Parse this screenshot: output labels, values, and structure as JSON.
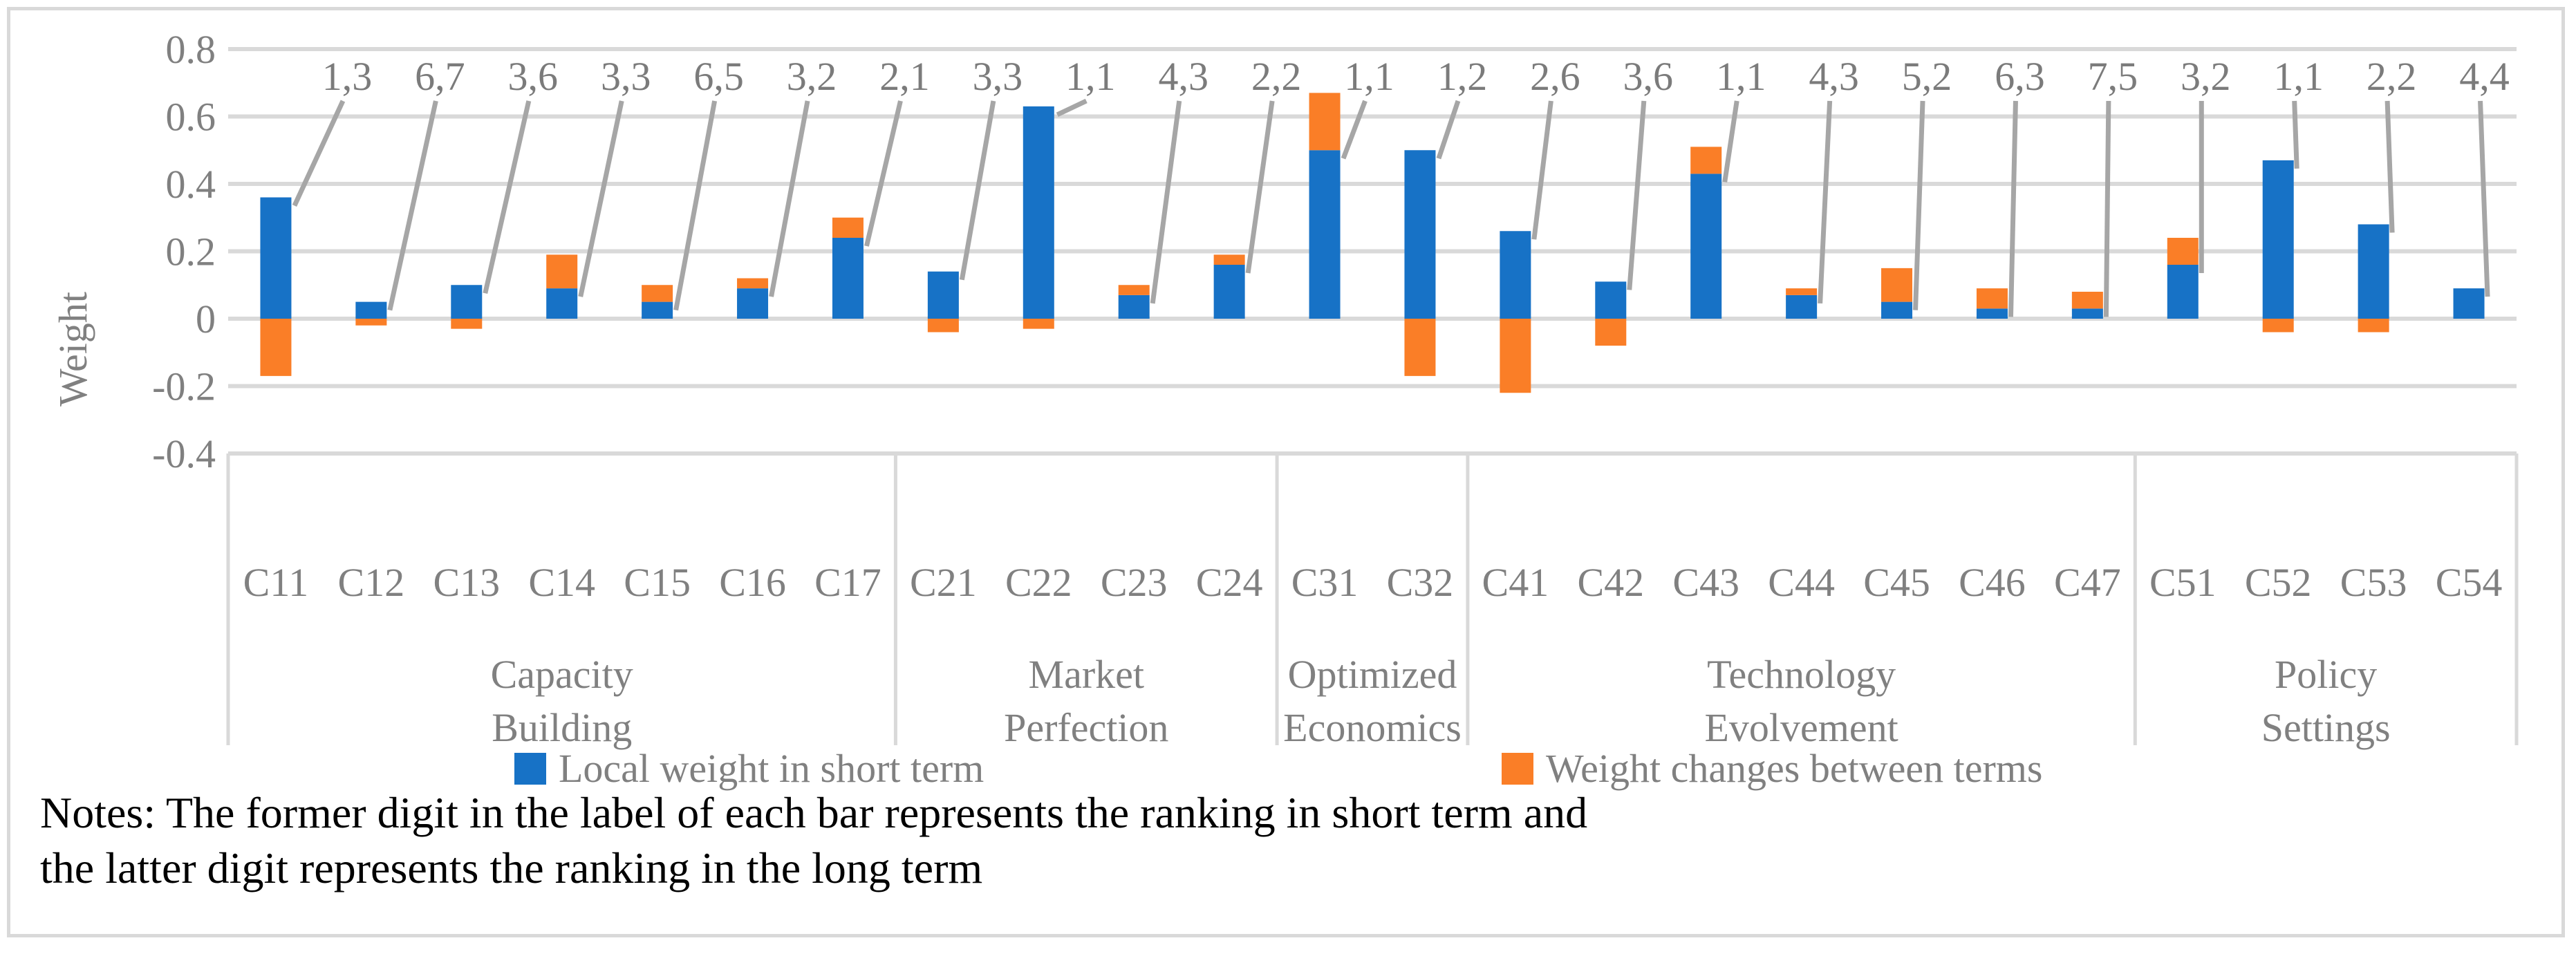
{
  "chart_data": {
    "type": "bar",
    "stacked": true,
    "title": "",
    "xlabel": "",
    "ylabel": "Weight",
    "ylim": [
      -0.4,
      0.8
    ],
    "ytick_labels": [
      "0.8",
      "0.6",
      "0.4",
      "0.2",
      "0",
      "-0.2",
      "-0.4"
    ],
    "grid": true,
    "legend_position": "bottom",
    "categories": [
      "C11",
      "C12",
      "C13",
      "C14",
      "C15",
      "C16",
      "C17",
      "C21",
      "C22",
      "C23",
      "C24",
      "C31",
      "C32",
      "C41",
      "C42",
      "C43",
      "C44",
      "C45",
      "C46",
      "C47",
      "C51",
      "C52",
      "C53",
      "C54"
    ],
    "bar_labels": [
      "1,3",
      "6,7",
      "3,6",
      "3,3",
      "6,5",
      "3,2",
      "2,1",
      "3,3",
      "1,1",
      "4,3",
      "2,2",
      "1,1",
      "1,2",
      "2,6",
      "3,6",
      "1,1",
      "4,3",
      "5,2",
      "6,3",
      "7,5",
      "3,2",
      "1,1",
      "2,2",
      "4,4"
    ],
    "series": [
      {
        "name": "Local weight in short term",
        "color": "#1772C6",
        "values": [
          0.36,
          0.05,
          0.1,
          0.09,
          0.05,
          0.09,
          0.24,
          0.14,
          0.63,
          0.07,
          0.16,
          0.5,
          0.5,
          0.26,
          0.11,
          0.43,
          0.07,
          0.05,
          0.03,
          0.03,
          0.16,
          0.47,
          0.28,
          0.09
        ]
      },
      {
        "name": "Weight changes between terms",
        "color": "#FA7E27",
        "values": [
          -0.17,
          -0.02,
          -0.03,
          0.1,
          0.05,
          0.03,
          0.06,
          -0.04,
          -0.03,
          0.03,
          0.03,
          0.17,
          -0.17,
          -0.22,
          -0.08,
          0.08,
          0.02,
          0.1,
          0.06,
          0.05,
          0.08,
          -0.04,
          -0.04,
          0
        ]
      }
    ],
    "groups": [
      {
        "line1": "Capacity",
        "line2": "Building",
        "count": 7
      },
      {
        "line1": "Market",
        "line2": "Perfection",
        "count": 4
      },
      {
        "line1": "Optimized",
        "line2": "Economics",
        "count": 2
      },
      {
        "line1": "Technology",
        "line2": "Evolvement",
        "count": 7
      },
      {
        "line1": "Policy",
        "line2": "Settings",
        "count": 4
      }
    ]
  },
  "legend": {
    "items": [
      {
        "label": "Local weight in short term",
        "color": "#1772C6"
      },
      {
        "label": "Weight changes between terms",
        "color": "#FA7E27"
      }
    ]
  },
  "notes": {
    "line1": "Notes: The former digit in the label of each bar represents the ranking in short term and",
    "line2": "the latter digit represents the ranking in the long term"
  },
  "styles": {
    "grid_color": "#D9D9D9",
    "border_color": "#D9D9D9",
    "axis_text_color": "#808080",
    "bar_label_color": "#7B7B7B",
    "leader_color": "#A6A6A6",
    "legend_text_color": "#808080",
    "notes_color": "#000000"
  }
}
